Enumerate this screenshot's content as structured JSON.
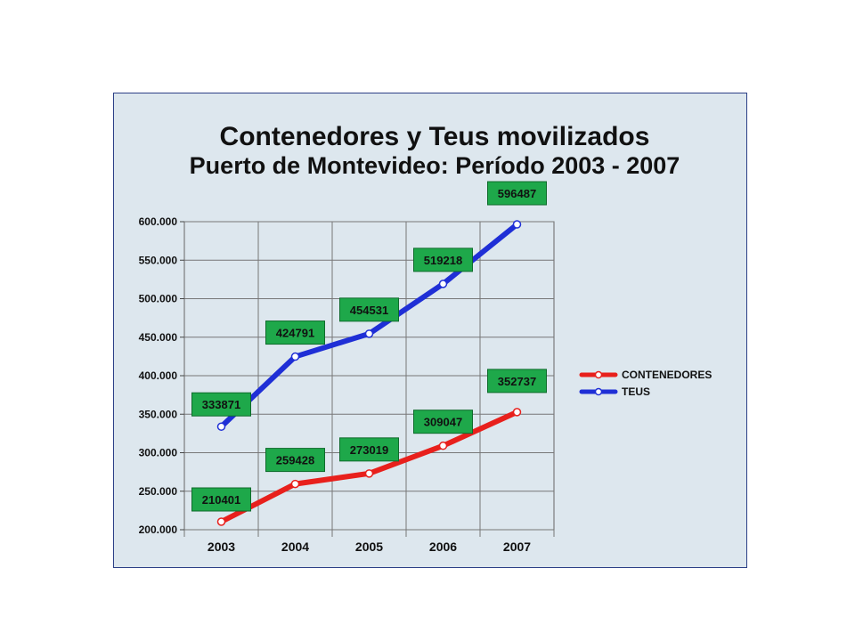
{
  "chart_data": {
    "type": "line",
    "title": "Contenedores y Teus movilizados",
    "subtitle": "Puerto de Montevideo: Período 2003 - 2007",
    "categories": [
      "2003",
      "2004",
      "2005",
      "2006",
      "2007"
    ],
    "ylim": [
      200000,
      600000
    ],
    "y_ticks": [
      {
        "value": 200000,
        "label": "200.000"
      },
      {
        "value": 250000,
        "label": "250.000"
      },
      {
        "value": 300000,
        "label": "300.000"
      },
      {
        "value": 350000,
        "label": "350.000"
      },
      {
        "value": 400000,
        "label": "400.000"
      },
      {
        "value": 450000,
        "label": "450.000"
      },
      {
        "value": 500000,
        "label": "500.000"
      },
      {
        "value": 550000,
        "label": "550.000"
      },
      {
        "value": 600000,
        "label": "600.000"
      }
    ],
    "grid": true,
    "legend_position": "right",
    "series": [
      {
        "name": "CONTENEDORES",
        "color": "#e8201c",
        "values": [
          210401,
          259428,
          273019,
          309047,
          352737
        ]
      },
      {
        "name": "TEUS",
        "color": "#1f2fd6",
        "values": [
          333871,
          424791,
          454531,
          519218,
          596487
        ]
      }
    ],
    "label_box_color": "#1ea84a"
  }
}
